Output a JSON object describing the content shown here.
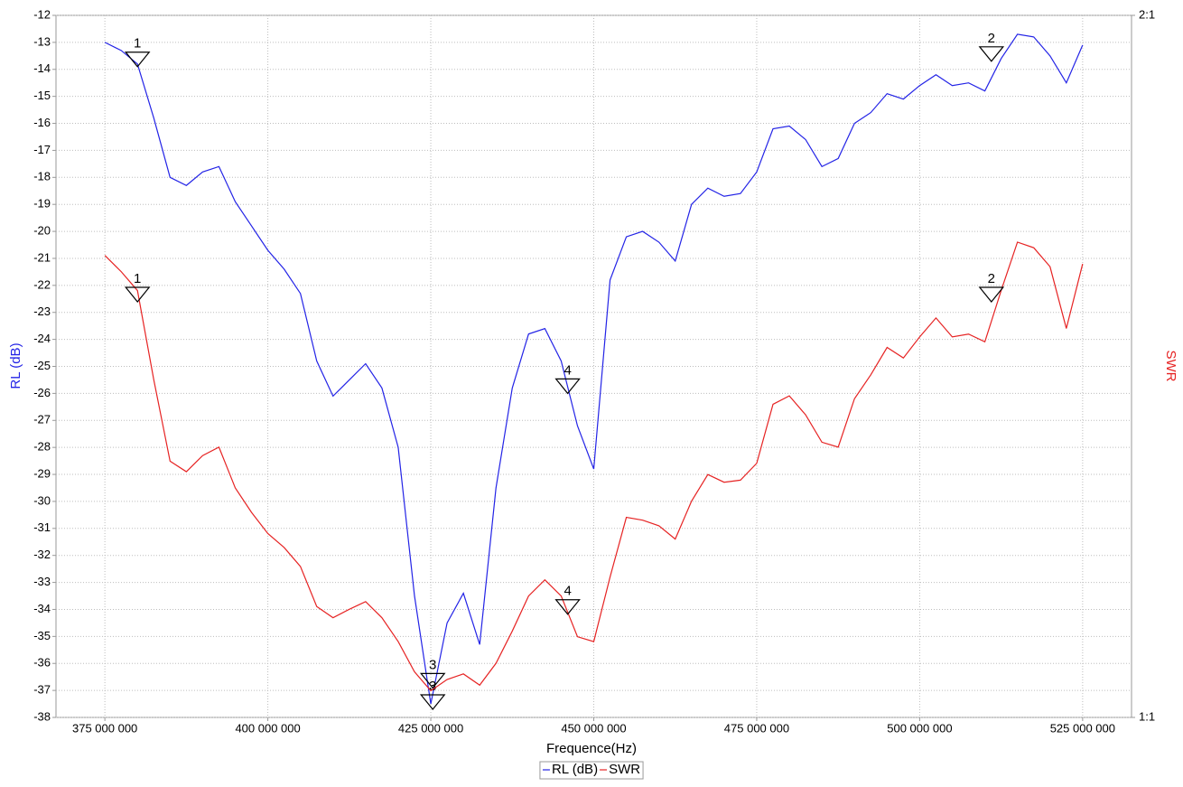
{
  "chart_data": {
    "type": "line",
    "x_label": "Frequence(Hz)",
    "y_label": "RL (dB)",
    "y2_label": "SWR",
    "xlim": [
      367500000,
      532500000
    ],
    "xticks": [
      {
        "value": 375000000,
        "label": "375 000 000"
      },
      {
        "value": 400000000,
        "label": "400 000 000"
      },
      {
        "value": 425000000,
        "label": "425 000 000"
      },
      {
        "value": 450000000,
        "label": "450 000 000"
      },
      {
        "value": 475000000,
        "label": "475 000 000"
      },
      {
        "value": 500000000,
        "label": "500 000 000"
      },
      {
        "value": 525000000,
        "label": "525 000 000"
      }
    ],
    "ylim": [
      -38,
      -12
    ],
    "yticks": [
      -12,
      -13,
      -14,
      -15,
      -16,
      -17,
      -18,
      -19,
      -20,
      -21,
      -22,
      -23,
      -24,
      -25,
      -26,
      -27,
      -28,
      -29,
      -30,
      -31,
      -32,
      -33,
      -34,
      -35,
      -36,
      -37,
      -38
    ],
    "y2lim": [
      1,
      2
    ],
    "y2ticks": [
      {
        "value": 2,
        "label": "2:1"
      },
      {
        "value": 1,
        "label": "1:1"
      }
    ],
    "grid": true,
    "legend": "bottom",
    "x": [
      375000000,
      377500000,
      380000000,
      382500000,
      385000000,
      387500000,
      390000000,
      392500000,
      395000000,
      397500000,
      400000000,
      402500000,
      405000000,
      407500000,
      410000000,
      412500000,
      415000000,
      417500000,
      420000000,
      422500000,
      425000000,
      427500000,
      430000000,
      432500000,
      435000000,
      437500000,
      440000000,
      442500000,
      445000000,
      447500000,
      450000000,
      452500000,
      455000000,
      457500000,
      460000000,
      462500000,
      465000000,
      467500000,
      470000000,
      472500000,
      475000000,
      477500000,
      480000000,
      482500000,
      485000000,
      487500000,
      490000000,
      492500000,
      495000000,
      497500000,
      500000000,
      502500000,
      505000000,
      507500000,
      510000000,
      512500000,
      515000000,
      517500000,
      520000000,
      522500000,
      525000000
    ],
    "series": [
      {
        "name": "RL (dB)",
        "color": "#2323e6",
        "axis": "y",
        "values": [
          -13.0,
          -13.3,
          -13.8,
          -15.8,
          -18.0,
          -18.3,
          -17.8,
          -17.6,
          -18.9,
          -19.8,
          -20.7,
          -21.4,
          -22.3,
          -24.8,
          -26.1,
          -25.5,
          -24.9,
          -25.8,
          -28.0,
          -33.5,
          -37.5,
          -34.5,
          -33.4,
          -35.3,
          -29.5,
          -25.8,
          -23.8,
          -23.6,
          -24.8,
          -27.2,
          -28.8,
          -21.8,
          -20.2,
          -20.0,
          -20.4,
          -21.1,
          -19.0,
          -18.4,
          -18.7,
          -18.6,
          -17.8,
          -16.2,
          -16.1,
          -16.6,
          -17.6,
          -17.3,
          -16.0,
          -15.6,
          -14.9,
          -15.1,
          -14.6,
          -14.2,
          -14.6,
          -14.5,
          -14.8,
          -13.6,
          -12.7,
          -12.8,
          -13.5,
          -14.5,
          -13.1
        ],
        "markers": [
          {
            "label": "1",
            "x": 380000000,
            "value": -13.9
          },
          {
            "label": "2",
            "x": 511000000,
            "value": -13.7
          },
          {
            "label": "3",
            "x": 425300000,
            "value": -37.7
          },
          {
            "label": "4",
            "x": 446000000,
            "value": -26.0
          }
        ]
      },
      {
        "name": "SWR",
        "color": "#e62323",
        "axis": "y2",
        "values": [
          1.658,
          1.635,
          1.608,
          1.481,
          1.365,
          1.35,
          1.373,
          1.385,
          1.327,
          1.292,
          1.262,
          1.242,
          1.215,
          1.158,
          1.142,
          1.154,
          1.165,
          1.142,
          1.108,
          1.065,
          1.038,
          1.054,
          1.062,
          1.046,
          1.077,
          1.123,
          1.173,
          1.196,
          1.173,
          1.115,
          1.108,
          1.2,
          1.285,
          1.281,
          1.273,
          1.254,
          1.308,
          1.346,
          1.335,
          1.338,
          1.362,
          1.446,
          1.458,
          1.431,
          1.392,
          1.385,
          1.454,
          1.488,
          1.527,
          1.512,
          1.542,
          1.569,
          1.542,
          1.546,
          1.535,
          1.608,
          1.677,
          1.669,
          1.642,
          1.554,
          1.646
        ],
        "markers": [
          {
            "label": "1",
            "x": 380000000,
            "value": 1.592
          },
          {
            "label": "2",
            "x": 511000000,
            "value": 1.592
          },
          {
            "label": "3",
            "x": 425300000,
            "value": 1.042
          },
          {
            "label": "4",
            "x": 446000000,
            "value": 1.147
          }
        ]
      }
    ]
  }
}
